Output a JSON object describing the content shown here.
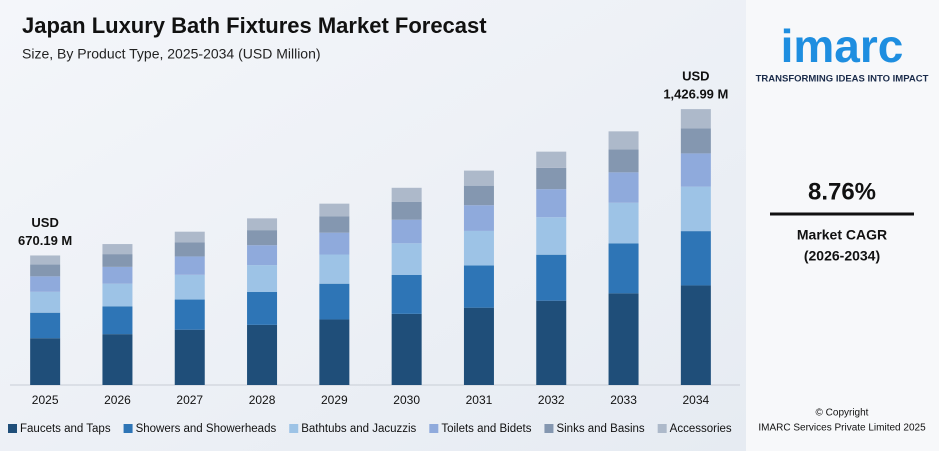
{
  "chart_data": {
    "type": "stacked-bar",
    "title": "Japan Luxury Bath Fixtures Market Forecast",
    "subtitle": "Size, By Product Type, 2025-2034 (USD Million)",
    "categories": [
      "2025",
      "2026",
      "2027",
      "2028",
      "2029",
      "2030",
      "2031",
      "2032",
      "2033",
      "2034"
    ],
    "series": [
      {
        "name": "Faucets and Taps",
        "color": "#1f4e79",
        "values": [
          242,
          263,
          286,
          311,
          339,
          368,
          400,
          436,
          474,
          515
        ]
      },
      {
        "name": "Showers and Showerheads",
        "color": "#2e75b6",
        "values": [
          132,
          144,
          156,
          170,
          185,
          201,
          218,
          238,
          258,
          281
        ]
      },
      {
        "name": "Bathtubs and Jacuzzis",
        "color": "#9dc3e6",
        "values": [
          108,
          117,
          128,
          139,
          151,
          164,
          179,
          194,
          211,
          230
        ]
      },
      {
        "name": "Toilets and Bidets",
        "color": "#8faadc",
        "values": [
          80,
          87,
          95,
          103,
          113,
          122,
          133,
          145,
          157,
          172
        ]
      },
      {
        "name": "Sinks and Basins",
        "color": "#8497b0",
        "values": [
          61,
          66,
          72,
          78,
          85,
          93,
          101,
          110,
          119,
          130
        ]
      },
      {
        "name": "Accessories",
        "color": "#adb9ca",
        "values": [
          47,
          52,
          56,
          61,
          65,
          72,
          78,
          84,
          93,
          99
        ]
      }
    ],
    "ylim": [
      0,
      1500
    ],
    "annotations": [
      {
        "lines": [
          "USD",
          "670.19 M"
        ]
      },
      {
        "lines": [
          "USD",
          "1,426.99 M"
        ]
      }
    ],
    "legend": "bottom"
  },
  "sidebar": {
    "logo": "imarc",
    "tagline": "TRANSFORMING IDEAS INTO IMPACT",
    "cagr": "8.76%",
    "cagr_label": "Market CAGR",
    "cagr_period": "(2026-2034)",
    "copyright": "© Copyright",
    "owner": "IMARC Services Private Limited 2025"
  }
}
